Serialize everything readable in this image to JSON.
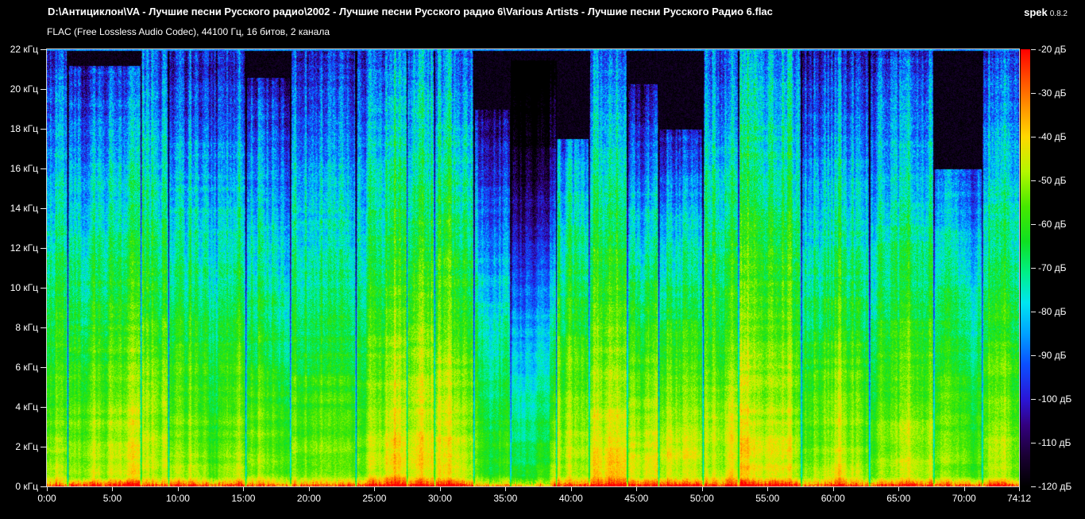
{
  "header": {
    "file_path": "D:\\Антициклон\\VA - Лучшие песни Русского радио\\2002 - Лучшие песни Русского радио 6\\Various Artists - Лучшие песни Русского Радио 6.flac",
    "app_name": "spek",
    "app_version": "0.8.2",
    "file_info": "FLAC (Free Lossless Audio Codec), 44100 Гц, 16 битов, 2 канала"
  },
  "axes": {
    "frequency": {
      "unit": "кГц",
      "labels": [
        {
          "label": "22 кГц",
          "khz": 22
        },
        {
          "label": "20 кГц",
          "khz": 20
        },
        {
          "label": "18 кГц",
          "khz": 18
        },
        {
          "label": "16 кГц",
          "khz": 16
        },
        {
          "label": "14 кГц",
          "khz": 14
        },
        {
          "label": "12 кГц",
          "khz": 12
        },
        {
          "label": "10 кГц",
          "khz": 10
        },
        {
          "label": "8 кГц",
          "khz": 8
        },
        {
          "label": "6 кГц",
          "khz": 6
        },
        {
          "label": "4 кГц",
          "khz": 4
        },
        {
          "label": "2 кГц",
          "khz": 2
        },
        {
          "label": "0 кГц",
          "khz": 0
        }
      ]
    },
    "time": {
      "labels": [
        {
          "label": "0:00",
          "min": 0
        },
        {
          "label": "5:00",
          "min": 5
        },
        {
          "label": "10:00",
          "min": 10
        },
        {
          "label": "15:00",
          "min": 15
        },
        {
          "label": "20:00",
          "min": 20
        },
        {
          "label": "25:00",
          "min": 25
        },
        {
          "label": "30:00",
          "min": 30
        },
        {
          "label": "35:00",
          "min": 35
        },
        {
          "label": "40:00",
          "min": 40
        },
        {
          "label": "45:00",
          "min": 45
        },
        {
          "label": "50:00",
          "min": 50
        },
        {
          "label": "55:00",
          "min": 55
        },
        {
          "label": "60:00",
          "min": 60
        },
        {
          "label": "65:00",
          "min": 65
        },
        {
          "label": "70:00",
          "min": 70
        },
        {
          "label": "74:12",
          "min": 74.2
        }
      ]
    },
    "level": {
      "unit": "дБ",
      "labels": [
        {
          "label": "-20 дБ",
          "db": -20
        },
        {
          "label": "-30 дБ",
          "db": -30
        },
        {
          "label": "-40 дБ",
          "db": -40
        },
        {
          "label": "-50 дБ",
          "db": -50
        },
        {
          "label": "-60 дБ",
          "db": -60
        },
        {
          "label": "-70 дБ",
          "db": -70
        },
        {
          "label": "-80 дБ",
          "db": -80
        },
        {
          "label": "-90 дБ",
          "db": -90
        },
        {
          "label": "-100 дБ",
          "db": -100
        },
        {
          "label": "-110 дБ",
          "db": -110
        },
        {
          "label": "-120 дБ",
          "db": -120
        }
      ]
    }
  },
  "spectrogram": {
    "duration_sec": 4452,
    "duration_label": "74:12",
    "freq_max_khz": 22.05,
    "db_min": -120,
    "db_max": -20,
    "seed": 7,
    "palette": [
      {
        "t": 0.0,
        "c": "#000000"
      },
      {
        "t": 0.07,
        "c": "#1a0033"
      },
      {
        "t": 0.14,
        "c": "#33007f"
      },
      {
        "t": 0.2,
        "c": "#2a16d8"
      },
      {
        "t": 0.28,
        "c": "#0b50ff"
      },
      {
        "t": 0.35,
        "c": "#00a2ff"
      },
      {
        "t": 0.42,
        "c": "#00e5f0"
      },
      {
        "t": 0.49,
        "c": "#00ef86"
      },
      {
        "t": 0.56,
        "c": "#0fe022"
      },
      {
        "t": 0.64,
        "c": "#46e800"
      },
      {
        "t": 0.72,
        "c": "#b4f700"
      },
      {
        "t": 0.8,
        "c": "#ffd800"
      },
      {
        "t": 0.87,
        "c": "#ff9000"
      },
      {
        "t": 0.94,
        "c": "#ff4400"
      },
      {
        "t": 1.0,
        "c": "#ff0000"
      }
    ],
    "tracks": [
      {
        "start_min": 0.0,
        "cutoff_khz": 22.05,
        "gain_db": 0,
        "dark": 0
      },
      {
        "start_min": 1.6,
        "cutoff_khz": 21.2,
        "gain_db": -2,
        "dark": 0.1
      },
      {
        "start_min": 7.2,
        "cutoff_khz": 22.05,
        "gain_db": 0,
        "dark": 0
      },
      {
        "start_min": 9.3,
        "cutoff_khz": 22.05,
        "gain_db": -1,
        "dark": 0.05
      },
      {
        "start_min": 15.2,
        "cutoff_khz": 20.6,
        "gain_db": -1,
        "dark": 0.1
      },
      {
        "start_min": 18.6,
        "cutoff_khz": 22.05,
        "gain_db": 1,
        "dark": 0
      },
      {
        "start_min": 23.6,
        "cutoff_khz": 22.05,
        "gain_db": 0,
        "dark": 0
      },
      {
        "start_min": 27.5,
        "cutoff_khz": 22.05,
        "gain_db": 1,
        "dark": 0
      },
      {
        "start_min": 29.6,
        "cutoff_khz": 22.05,
        "gain_db": 2,
        "dark": 0
      },
      {
        "start_min": 32.6,
        "cutoff_khz": 19.0,
        "gain_db": -2,
        "dark": 0.25
      },
      {
        "start_min": 35.4,
        "cutoff_khz": 21.5,
        "gain_db": -6,
        "dark": 0.55
      },
      {
        "start_min": 38.9,
        "cutoff_khz": 17.5,
        "gain_db": -1,
        "dark": 0.15
      },
      {
        "start_min": 41.4,
        "cutoff_khz": 22.05,
        "gain_db": 2,
        "dark": 0
      },
      {
        "start_min": 44.3,
        "cutoff_khz": 20.3,
        "gain_db": -4,
        "dark": 0.35
      },
      {
        "start_min": 46.7,
        "cutoff_khz": 18.0,
        "gain_db": -5,
        "dark": 0.45
      },
      {
        "start_min": 50.1,
        "cutoff_khz": 22.05,
        "gain_db": 1,
        "dark": 0
      },
      {
        "start_min": 52.8,
        "cutoff_khz": 22.05,
        "gain_db": 2,
        "dark": -0.1
      },
      {
        "start_min": 57.6,
        "cutoff_khz": 22.05,
        "gain_db": 0,
        "dark": 0.1
      },
      {
        "start_min": 62.8,
        "cutoff_khz": 22.05,
        "gain_db": 0,
        "dark": 0
      },
      {
        "start_min": 67.7,
        "cutoff_khz": 16.0,
        "gain_db": -1,
        "dark": 0.15
      },
      {
        "start_min": 71.4,
        "cutoff_khz": 22.05,
        "gain_db": 1,
        "dark": 0
      }
    ]
  }
}
